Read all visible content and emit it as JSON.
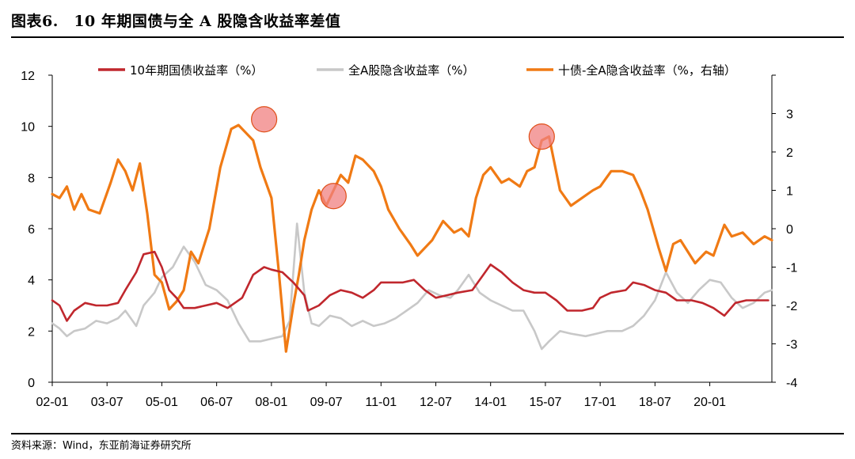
{
  "header": {
    "title": "图表6.　10 年期国债与全 A 股隐含收益率差值"
  },
  "footer": {
    "source": "资料来源：Wind，东亚前海证券研究所"
  },
  "colors": {
    "bond": "#c0272d",
    "equity": "#c8c8c8",
    "spread": "#f07a14",
    "highlight": "#f08080"
  },
  "chart_data": {
    "type": "line",
    "title": "",
    "xlabel": "",
    "ylabel": "",
    "x_ticks": [
      "02-01",
      "03-07",
      "05-01",
      "06-07",
      "08-01",
      "09-07",
      "11-01",
      "12-07",
      "14-01",
      "15-07",
      "17-01",
      "18-07",
      "20-01"
    ],
    "x_tick_dates": [
      2002.0,
      2003.5,
      2005.0,
      2006.5,
      2008.0,
      2009.5,
      2011.0,
      2012.5,
      2014.0,
      2015.5,
      2017.0,
      2018.5,
      2020.0
    ],
    "xlim": [
      2002.0,
      2021.7
    ],
    "ylim_left": [
      0,
      12
    ],
    "yticks_left": [
      "0",
      "2",
      "4",
      "6",
      "8",
      "10",
      "12"
    ],
    "ylim_right": [
      -4,
      4
    ],
    "yticks_right": [
      "-4",
      "-3",
      "-2",
      "-1",
      "0",
      "1",
      "2",
      "3"
    ],
    "legend_position": "top",
    "series": [
      {
        "name": "10年期国债收益率（%）",
        "axis": "left",
        "color": "#c0272d",
        "x": [
          2002.0,
          2002.2,
          2002.4,
          2002.6,
          2002.9,
          2003.2,
          2003.5,
          2003.8,
          2004.0,
          2004.3,
          2004.5,
          2004.8,
          2005.0,
          2005.2,
          2005.4,
          2005.6,
          2005.9,
          2006.2,
          2006.5,
          2006.8,
          2007.2,
          2007.5,
          2007.8,
          2008.0,
          2008.3,
          2008.6,
          2008.9,
          2009.0,
          2009.3,
          2009.6,
          2009.9,
          2010.2,
          2010.5,
          2010.8,
          2011.0,
          2011.3,
          2011.6,
          2011.9,
          2012.2,
          2012.5,
          2012.8,
          2013.1,
          2013.5,
          2013.8,
          2014.0,
          2014.3,
          2014.6,
          2014.9,
          2015.2,
          2015.5,
          2015.8,
          2016.1,
          2016.5,
          2016.8,
          2017.0,
          2017.3,
          2017.7,
          2017.9,
          2018.2,
          2018.5,
          2018.8,
          2019.1,
          2019.5,
          2019.8,
          2020.1,
          2020.4,
          2020.7,
          2021.0,
          2021.3,
          2021.6
        ],
        "values": [
          3.2,
          3.0,
          2.4,
          2.8,
          3.1,
          3.0,
          3.0,
          3.1,
          3.6,
          4.3,
          5.0,
          5.1,
          4.5,
          3.6,
          3.3,
          2.9,
          2.9,
          3.0,
          3.1,
          2.9,
          3.3,
          4.2,
          4.5,
          4.4,
          4.3,
          3.9,
          3.4,
          2.8,
          3.0,
          3.4,
          3.6,
          3.5,
          3.3,
          3.6,
          3.9,
          3.9,
          3.9,
          4.0,
          3.6,
          3.3,
          3.4,
          3.5,
          3.6,
          4.2,
          4.6,
          4.3,
          3.9,
          3.6,
          3.5,
          3.5,
          3.2,
          2.8,
          2.8,
          2.9,
          3.3,
          3.5,
          3.6,
          3.9,
          3.8,
          3.6,
          3.5,
          3.2,
          3.2,
          3.1,
          2.9,
          2.6,
          3.1,
          3.2,
          3.2,
          3.2
        ]
      },
      {
        "name": "全A股隐含收益率（%）",
        "axis": "left",
        "color": "#c8c8c8",
        "x": [
          2002.0,
          2002.2,
          2002.4,
          2002.6,
          2002.9,
          2003.2,
          2003.5,
          2003.8,
          2004.0,
          2004.3,
          2004.5,
          2004.8,
          2005.0,
          2005.3,
          2005.6,
          2005.9,
          2006.2,
          2006.5,
          2006.8,
          2007.1,
          2007.4,
          2007.7,
          2008.0,
          2008.3,
          2008.5,
          2008.7,
          2008.9,
          2009.1,
          2009.3,
          2009.6,
          2009.9,
          2010.2,
          2010.5,
          2010.8,
          2011.1,
          2011.4,
          2011.7,
          2012.0,
          2012.3,
          2012.6,
          2012.9,
          2013.1,
          2013.4,
          2013.7,
          2014.0,
          2014.3,
          2014.6,
          2014.9,
          2015.2,
          2015.4,
          2015.6,
          2015.9,
          2016.2,
          2016.6,
          2016.9,
          2017.2,
          2017.6,
          2017.9,
          2018.2,
          2018.5,
          2018.8,
          2019.1,
          2019.4,
          2019.7,
          2020.0,
          2020.3,
          2020.6,
          2020.9,
          2021.2,
          2021.5,
          2021.7
        ],
        "values": [
          2.3,
          2.1,
          1.8,
          2.0,
          2.1,
          2.4,
          2.3,
          2.5,
          2.8,
          2.2,
          3.0,
          3.5,
          4.1,
          4.5,
          5.3,
          4.7,
          3.8,
          3.6,
          3.2,
          2.3,
          1.6,
          1.6,
          1.7,
          1.8,
          2.4,
          6.2,
          3.5,
          2.3,
          2.2,
          2.6,
          2.5,
          2.2,
          2.4,
          2.2,
          2.3,
          2.5,
          2.8,
          3.1,
          3.6,
          3.4,
          3.3,
          3.6,
          4.2,
          3.5,
          3.2,
          3.0,
          2.8,
          2.8,
          2.0,
          1.3,
          1.6,
          2.0,
          1.9,
          1.8,
          1.9,
          2.0,
          2.0,
          2.2,
          2.6,
          3.2,
          4.3,
          3.5,
          3.1,
          3.6,
          4.0,
          3.9,
          3.3,
          2.9,
          3.1,
          3.5,
          3.6
        ]
      },
      {
        "name": "十债-全A隐含收益率（%，右轴）",
        "axis": "right",
        "color": "#f07a14",
        "x": [
          2002.0,
          2002.2,
          2002.4,
          2002.6,
          2002.8,
          2003.0,
          2003.3,
          2003.6,
          2003.8,
          2004.0,
          2004.2,
          2004.4,
          2004.6,
          2004.8,
          2005.0,
          2005.2,
          2005.4,
          2005.6,
          2005.8,
          2006.0,
          2006.3,
          2006.6,
          2006.9,
          2007.1,
          2007.3,
          2007.5,
          2007.7,
          2008.0,
          2008.2,
          2008.4,
          2008.6,
          2008.75,
          2008.9,
          2009.1,
          2009.3,
          2009.5,
          2009.7,
          2009.9,
          2010.1,
          2010.3,
          2010.5,
          2010.8,
          2011.0,
          2011.2,
          2011.5,
          2011.8,
          2012.0,
          2012.2,
          2012.4,
          2012.7,
          2013.0,
          2013.2,
          2013.4,
          2013.6,
          2013.8,
          2014.0,
          2014.3,
          2014.5,
          2014.8,
          2015.0,
          2015.2,
          2015.4,
          2015.6,
          2015.9,
          2016.2,
          2016.5,
          2016.8,
          2017.0,
          2017.3,
          2017.6,
          2017.9,
          2018.1,
          2018.3,
          2018.6,
          2018.8,
          2019.0,
          2019.2,
          2019.4,
          2019.6,
          2019.9,
          2020.1,
          2020.4,
          2020.6,
          2020.9,
          2021.2,
          2021.5,
          2021.7
        ],
        "values": [
          0.9,
          0.8,
          1.1,
          0.5,
          0.9,
          0.5,
          0.4,
          1.2,
          1.8,
          1.5,
          1.0,
          1.7,
          0.4,
          -1.2,
          -1.4,
          -2.1,
          -1.9,
          -1.6,
          -0.6,
          -0.9,
          0.0,
          1.6,
          2.6,
          2.7,
          2.5,
          2.3,
          1.6,
          0.8,
          -1.1,
          -3.2,
          -2.0,
          -1.2,
          -0.3,
          0.5,
          1.0,
          0.6,
          1.0,
          1.4,
          1.2,
          1.9,
          1.8,
          1.5,
          1.1,
          0.5,
          0.0,
          -0.4,
          -0.7,
          -0.5,
          -0.3,
          0.2,
          -0.1,
          0.0,
          -0.2,
          0.8,
          1.4,
          1.6,
          1.2,
          1.3,
          1.1,
          1.5,
          1.6,
          2.3,
          2.4,
          1.0,
          0.6,
          0.8,
          1.0,
          1.1,
          1.5,
          1.5,
          1.4,
          1.0,
          0.5,
          -0.5,
          -1.1,
          -0.4,
          -0.3,
          -0.6,
          -0.9,
          -0.6,
          -0.7,
          0.1,
          -0.2,
          -0.1,
          -0.4,
          -0.2,
          -0.3
        ]
      }
    ],
    "annotations": [
      {
        "type": "highlight-circle",
        "x": 2007.8,
        "y": 2.85,
        "axis": "right"
      },
      {
        "type": "highlight-circle",
        "x": 2009.7,
        "y": 0.85,
        "axis": "right"
      },
      {
        "type": "highlight-circle",
        "x": 2015.4,
        "y": 2.4,
        "axis": "right"
      }
    ]
  }
}
